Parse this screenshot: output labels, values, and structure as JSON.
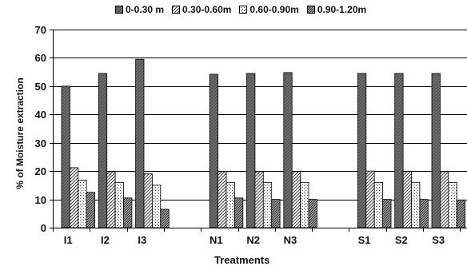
{
  "chart_data": {
    "type": "bar",
    "title": "",
    "xlabel": "Treatments",
    "ylabel": "% of Moisture extraction",
    "ylim": [
      0,
      70
    ],
    "yticks": [
      0,
      10,
      20,
      30,
      40,
      50,
      60,
      70
    ],
    "grid": true,
    "legend_position": "top",
    "categories": [
      "I1",
      "I2",
      "I3",
      "N1",
      "N2",
      "N3",
      "S1",
      "S2",
      "S3"
    ],
    "category_groups": [
      [
        "I1",
        "I2",
        "I3"
      ],
      [
        "N1",
        "N2",
        "N3"
      ],
      [
        "S1",
        "S2",
        "S3"
      ]
    ],
    "series": [
      {
        "name": "0-0.30 m",
        "pattern": "dark",
        "values": [
          50,
          54.5,
          59.5,
          54.2,
          54.5,
          54.8,
          54.5,
          54.5,
          54.5
        ]
      },
      {
        "name": "0.30-0.60m",
        "pattern": "hatch",
        "values": [
          21.2,
          19.8,
          19,
          19.8,
          19.8,
          19.8,
          20,
          19.8,
          19.8
        ]
      },
      {
        "name": "0.60-0.90m",
        "pattern": "dots",
        "values": [
          16.8,
          16,
          15,
          16,
          16,
          16,
          16,
          16,
          16
        ]
      },
      {
        "name": "0.90-1.20m",
        "pattern": "dense-hatch",
        "values": [
          12.5,
          10.5,
          6.5,
          10.5,
          10,
          10,
          10,
          10,
          9.8
        ]
      }
    ],
    "colors": {
      "dark": "#6e6e6e",
      "hatch": "#ffffff",
      "dots": "#ffffff",
      "dense-hatch": "#9a9a9a"
    }
  }
}
